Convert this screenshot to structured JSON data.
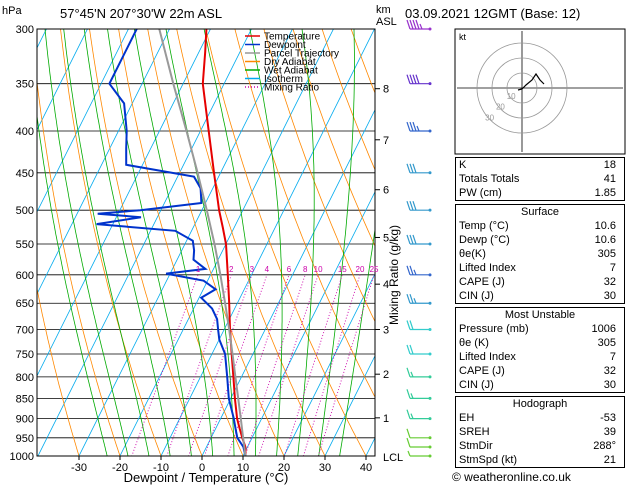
{
  "header": {
    "station": "57°45'N 207°30'W 22m ASL",
    "date": "03.09.2021 12GMT (Base: 12)",
    "units_left": "hPa",
    "units_right_1": "km",
    "units_right_2": "ASL"
  },
  "axes": {
    "xlabel": "Dewpoint / Temperature (°C)",
    "mixing_label": "Mixing Ratio (g/kg)",
    "lcl_label": "LCL"
  },
  "legend": {
    "items": [
      {
        "label": "Temperature",
        "color": "#e60000"
      },
      {
        "label": "Dewpoint",
        "color": "#0033cc"
      },
      {
        "label": "Parcel Trajectory",
        "color": "#999999"
      },
      {
        "label": "Dry Adiabat",
        "color": "#ff8800"
      },
      {
        "label": "Wet Adiabat",
        "color": "#00aa00"
      },
      {
        "label": "Isotherm",
        "color": "#00aaee"
      },
      {
        "label": "Mixing Ratio",
        "color": "#cc00aa"
      }
    ]
  },
  "chart_data": {
    "type": "line",
    "title": "",
    "xlabel": "Dewpoint / Temperature (°C)",
    "ylabel": "hPa",
    "pressure_ticks": [
      300,
      350,
      400,
      450,
      500,
      550,
      600,
      650,
      700,
      750,
      800,
      850,
      900,
      950,
      1000
    ],
    "temp_ticks": [
      -30,
      -20,
      -10,
      0,
      10,
      20,
      30,
      40
    ],
    "xlim": [
      -40,
      40
    ],
    "ylim": [
      1000,
      300
    ],
    "km_ticks": [
      {
        "label": "1",
        "p": 898
      },
      {
        "label": "2",
        "p": 794
      },
      {
        "label": "3",
        "p": 700
      },
      {
        "label": "4",
        "p": 616
      },
      {
        "label": "5",
        "p": 540
      },
      {
        "label": "6",
        "p": 472
      },
      {
        "label": "7",
        "p": 410
      },
      {
        "label": "8",
        "p": 355
      }
    ],
    "mixing_ratios": [
      {
        "label": "1",
        "value": 1
      },
      {
        "label": "2",
        "value": 2
      },
      {
        "label": "3",
        "value": 3
      },
      {
        "label": "4",
        "value": 4
      },
      {
        "label": "6",
        "value": 6
      },
      {
        "label": "8",
        "value": 8
      },
      {
        "label": "10",
        "value": 10
      },
      {
        "label": "15",
        "value": 15
      },
      {
        "label": "20",
        "value": 20
      },
      {
        "label": "25",
        "value": 25
      }
    ],
    "series": [
      {
        "name": "Temperature",
        "color": "#e60000",
        "points": [
          [
            1000,
            10.6
          ],
          [
            975,
            9.5
          ],
          [
            950,
            7.6
          ],
          [
            925,
            5.8
          ],
          [
            900,
            4.0
          ],
          [
            850,
            1.0
          ],
          [
            800,
            -2.0
          ],
          [
            750,
            -5.2
          ],
          [
            700,
            -8.6
          ],
          [
            650,
            -12.0
          ],
          [
            600,
            -15.8
          ],
          [
            550,
            -20.0
          ],
          [
            525,
            -22.8
          ],
          [
            500,
            -25.8
          ],
          [
            450,
            -31.6
          ],
          [
            400,
            -38.0
          ],
          [
            350,
            -45.2
          ],
          [
            320,
            -48.5
          ],
          [
            300,
            -51.0
          ]
        ]
      },
      {
        "name": "Dewpoint",
        "color": "#0033cc",
        "points": [
          [
            1000,
            10.6
          ],
          [
            975,
            9.0
          ],
          [
            950,
            6.4
          ],
          [
            925,
            4.8
          ],
          [
            900,
            3.2
          ],
          [
            850,
            -0.5
          ],
          [
            800,
            -3.5
          ],
          [
            750,
            -6.8
          ],
          [
            720,
            -10.0
          ],
          [
            700,
            -11.5
          ],
          [
            680,
            -13.0
          ],
          [
            660,
            -15.5
          ],
          [
            640,
            -19.5
          ],
          [
            625,
            -17.0
          ],
          [
            610,
            -21.0
          ],
          [
            598,
            -31.0
          ],
          [
            590,
            -22.0
          ],
          [
            575,
            -26.0
          ],
          [
            560,
            -27.0
          ],
          [
            545,
            -28.5
          ],
          [
            530,
            -34.0
          ],
          [
            520,
            -54.0
          ],
          [
            510,
            -44.0
          ],
          [
            505,
            -55.0
          ],
          [
            500,
            -45.0
          ],
          [
            490,
            -31.0
          ],
          [
            470,
            -33.0
          ],
          [
            455,
            -36.0
          ],
          [
            440,
            -54.0
          ],
          [
            420,
            -56.0
          ],
          [
            400,
            -58.0
          ],
          [
            370,
            -62.0
          ],
          [
            350,
            -68.0
          ],
          [
            300,
            -68.0
          ]
        ]
      },
      {
        "name": "Parcel Trajectory",
        "color": "#999999",
        "points": [
          [
            1000,
            10.6
          ],
          [
            950,
            7.8
          ],
          [
            900,
            4.9
          ],
          [
            850,
            1.8
          ],
          [
            800,
            -1.5
          ],
          [
            750,
            -5.0
          ],
          [
            700,
            -8.8
          ],
          [
            650,
            -13.0
          ],
          [
            600,
            -17.6
          ],
          [
            550,
            -22.8
          ],
          [
            500,
            -28.8
          ],
          [
            450,
            -35.6
          ],
          [
            400,
            -43.4
          ],
          [
            350,
            -52.4
          ],
          [
            300,
            -62.5
          ]
        ]
      }
    ],
    "wind_barbs": [
      {
        "p": 1000,
        "speed": 5,
        "color": "#66cc33"
      },
      {
        "p": 975,
        "speed": 10,
        "color": "#66cc33"
      },
      {
        "p": 950,
        "speed": 10,
        "color": "#66cc33"
      },
      {
        "p": 900,
        "speed": 15,
        "color": "#33cc99"
      },
      {
        "p": 850,
        "speed": 15,
        "color": "#33cc99"
      },
      {
        "p": 800,
        "speed": 15,
        "color": "#33cc99"
      },
      {
        "p": 750,
        "speed": 20,
        "color": "#33cccc"
      },
      {
        "p": 700,
        "speed": 20,
        "color": "#33cccc"
      },
      {
        "p": 650,
        "speed": 25,
        "color": "#3399cc"
      },
      {
        "p": 600,
        "speed": 25,
        "color": "#3366cc"
      },
      {
        "p": 550,
        "speed": 30,
        "color": "#3399cc"
      },
      {
        "p": 500,
        "speed": 30,
        "color": "#3399cc"
      },
      {
        "p": 450,
        "speed": 30,
        "color": "#3399cc"
      },
      {
        "p": 400,
        "speed": 35,
        "color": "#3366cc"
      },
      {
        "p": 350,
        "speed": 40,
        "color": "#6633cc"
      },
      {
        "p": 300,
        "speed": 45,
        "color": "#9933cc"
      }
    ]
  },
  "hodograph": {
    "unit_label": "kt",
    "ring_labels": [
      "10",
      "20",
      "30"
    ]
  },
  "indices": {
    "top": [
      {
        "label": "K",
        "value": "18"
      },
      {
        "label": "Totals Totals",
        "value": "41"
      },
      {
        "label": "PW (cm)",
        "value": "1.85"
      }
    ],
    "surface": {
      "title": "Surface",
      "rows": [
        {
          "label": "Temp (°C)",
          "value": "10.6"
        },
        {
          "label": "Dewp (°C)",
          "value": "10.6"
        },
        {
          "label": "θe(K)",
          "value": "305"
        },
        {
          "label": "Lifted Index",
          "value": "7"
        },
        {
          "label": "CAPE (J)",
          "value": "32"
        },
        {
          "label": "CIN (J)",
          "value": "30"
        }
      ]
    },
    "unstable": {
      "title": "Most Unstable",
      "rows": [
        {
          "label": "Pressure (mb)",
          "value": "1006"
        },
        {
          "label": "θe (K)",
          "value": "305"
        },
        {
          "label": "Lifted Index",
          "value": "7"
        },
        {
          "label": "CAPE (J)",
          "value": "32"
        },
        {
          "label": "CIN (J)",
          "value": "30"
        }
      ]
    },
    "hodo": {
      "title": "Hodograph",
      "rows": [
        {
          "label": "EH",
          "value": "-53"
        },
        {
          "label": "SREH",
          "value": "39"
        },
        {
          "label": "StmDir",
          "value": "288°"
        },
        {
          "label": "StmSpd (kt)",
          "value": "21"
        }
      ]
    }
  },
  "footer": {
    "credit": "© weatheronline.co.uk"
  }
}
